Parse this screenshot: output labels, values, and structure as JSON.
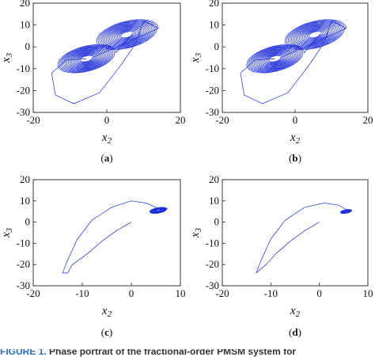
{
  "chart_data": [
    {
      "type": "line",
      "panel_label": "(a)",
      "xlabel": "x2",
      "ylabel": "x3",
      "xlim": [
        -20,
        20
      ],
      "ylim": [
        -30,
        20
      ],
      "xticks": [
        -20,
        0,
        20
      ],
      "yticks": [
        20,
        10,
        0,
        -10,
        -20,
        -30
      ],
      "grid": false,
      "series": [
        {
          "style": "double-scroll chaotic attractor",
          "color": "#1f2fd8",
          "attractors": [
            {
              "cx": -5.5,
              "cy": -5.5,
              "rmax": 8,
              "rmin": 1.5,
              "turns": 16
            },
            {
              "cx": 5.5,
              "cy": 5.5,
              "rmax": 8.5,
              "rmin": 1.5,
              "turns": 16
            }
          ],
          "outer_loop_x": [
            -5.5,
            -11,
            -15,
            -14,
            -9,
            -2,
            4,
            8,
            10
          ],
          "outer_loop_y": [
            -5.5,
            -6,
            -12,
            -22,
            -26,
            -21,
            -8,
            2,
            12
          ]
        }
      ]
    },
    {
      "type": "line",
      "panel_label": "(b)",
      "xlabel": "x2",
      "ylabel": "x3",
      "xlim": [
        -20,
        20
      ],
      "ylim": [
        -30,
        20
      ],
      "xticks": [
        -20,
        0,
        20
      ],
      "yticks": [
        20,
        10,
        0,
        -10,
        -20,
        -30
      ],
      "grid": false,
      "series": [
        {
          "style": "double-scroll chaotic attractor",
          "color": "#1f2fd8",
          "attractors": [
            {
              "cx": -5.5,
              "cy": -5.5,
              "rmax": 8,
              "rmin": 1.5,
              "turns": 16
            },
            {
              "cx": 5.5,
              "cy": 5.5,
              "rmax": 8.5,
              "rmin": 1.5,
              "turns": 16
            }
          ],
          "outer_loop_x": [
            -5.5,
            -11,
            -15,
            -14,
            -9,
            -2,
            4,
            8,
            10
          ],
          "outer_loop_y": [
            -5.5,
            -6,
            -12,
            -22,
            -26,
            -21,
            -8,
            2,
            12
          ]
        }
      ]
    },
    {
      "type": "line",
      "panel_label": "(c)",
      "xlabel": "x2",
      "ylabel": "x3",
      "xlim": [
        -20,
        10
      ],
      "ylim": [
        -30,
        20
      ],
      "xticks": [
        -20,
        -10,
        0,
        10
      ],
      "yticks": [
        20,
        10,
        0,
        -10,
        -20,
        -30
      ],
      "grid": false,
      "series": [
        {
          "style": "transient converging to stable focus",
          "color": "#1f2fd8",
          "x": [
            0,
            -3,
            -6,
            -9,
            -12,
            -13,
            -14,
            -13,
            -11,
            -8,
            -4,
            0,
            3,
            5,
            6
          ],
          "y": [
            0,
            -4,
            -9,
            -15,
            -20,
            -24,
            -24,
            -18,
            -8,
            1,
            7,
            10,
            9,
            7,
            6
          ],
          "spiral": {
            "cx": 5.5,
            "cy": 5.5,
            "rmax": 1.8,
            "rmin": 0.3,
            "turns": 12
          }
        }
      ]
    },
    {
      "type": "line",
      "panel_label": "(d)",
      "xlabel": "x2",
      "ylabel": "x3",
      "xlim": [
        -20,
        10
      ],
      "ylim": [
        -30,
        20
      ],
      "xticks": [
        -20,
        -10,
        0,
        10
      ],
      "yticks": [
        20,
        10,
        0,
        -10,
        -20,
        -30
      ],
      "grid": false,
      "series": [
        {
          "style": "transient converging to stable focus",
          "color": "#1f2fd8",
          "x": [
            0,
            -3,
            -6,
            -9,
            -11,
            -13,
            -13,
            -12,
            -10,
            -7,
            -3,
            1,
            4,
            5.5,
            6
          ],
          "y": [
            0,
            -4,
            -9,
            -15,
            -20,
            -24,
            -24,
            -18,
            -8,
            1,
            7,
            9,
            8,
            6,
            5
          ],
          "spiral": {
            "cx": 5.5,
            "cy": 5.0,
            "rmax": 1.2,
            "rmin": 0.2,
            "turns": 10
          }
        }
      ]
    }
  ],
  "caption": {
    "label": "FIGURE 1.",
    "text": "Phase portrait of the fractional-order PMSM system for"
  }
}
